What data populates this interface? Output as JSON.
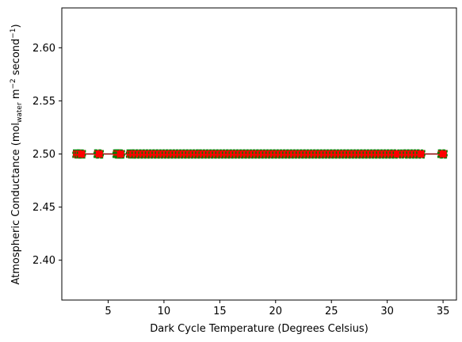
{
  "chart_data": {
    "type": "scatter",
    "title": "",
    "xlabel": "Dark Cycle Temperature (Degrees Celsius)",
    "ylabel_parts": {
      "prefix": "Atmospheric Conductance (mol",
      "sub": "water",
      "mid": " m",
      "sup1": "−2",
      "mid2": " second",
      "sup2": "−1",
      "suffix": ")"
    },
    "xlim": [
      0.85,
      36.2
    ],
    "ylim": [
      2.3625,
      2.6375
    ],
    "xticks": [
      5,
      10,
      15,
      20,
      25,
      30,
      35
    ],
    "xtick_labels": [
      "5",
      "10",
      "15",
      "20",
      "25",
      "30",
      "35"
    ],
    "yticks": [
      2.4,
      2.45,
      2.5,
      2.55,
      2.6
    ],
    "ytick_labels": [
      "2.40",
      "2.45",
      "2.50",
      "2.55",
      "2.60"
    ],
    "grid": false,
    "line": {
      "x": [
        2.0,
        35.0
      ],
      "y": [
        2.5,
        2.5
      ],
      "color": "#8b0000"
    },
    "series": [
      {
        "marker": "square",
        "edge_color": "#008000",
        "face_color": "#ff0000",
        "y": 2.5,
        "x": [
          2.2,
          2.4,
          2.6,
          4.1,
          4.2,
          5.8,
          5.9,
          6.0,
          6.1,
          7.0,
          7.2,
          7.5,
          7.8,
          8.1,
          8.4,
          8.7,
          9.0,
          9.3,
          9.6,
          9.9,
          10.2,
          10.5,
          10.8,
          11.1,
          11.4,
          11.7,
          12.0,
          12.3,
          12.6,
          12.9,
          13.2,
          13.5,
          13.8,
          14.1,
          14.4,
          14.7,
          15.0,
          15.3,
          15.6,
          15.9,
          16.2,
          16.5,
          16.8,
          17.1,
          17.4,
          17.7,
          18.0,
          18.3,
          18.6,
          18.9,
          19.2,
          19.5,
          19.8,
          20.1,
          20.4,
          20.7,
          21.0,
          21.3,
          21.6,
          21.9,
          22.2,
          22.5,
          22.8,
          23.1,
          23.4,
          23.7,
          24.0,
          24.3,
          24.6,
          24.9,
          25.2,
          25.5,
          25.8,
          26.1,
          26.4,
          26.7,
          27.0,
          27.3,
          27.6,
          27.9,
          28.2,
          28.5,
          28.8,
          29.1,
          29.4,
          29.7,
          30.0,
          30.3,
          30.6,
          30.9,
          31.5,
          31.8,
          32.1,
          32.4,
          32.7,
          33.0,
          34.9,
          35.0
        ]
      }
    ]
  }
}
